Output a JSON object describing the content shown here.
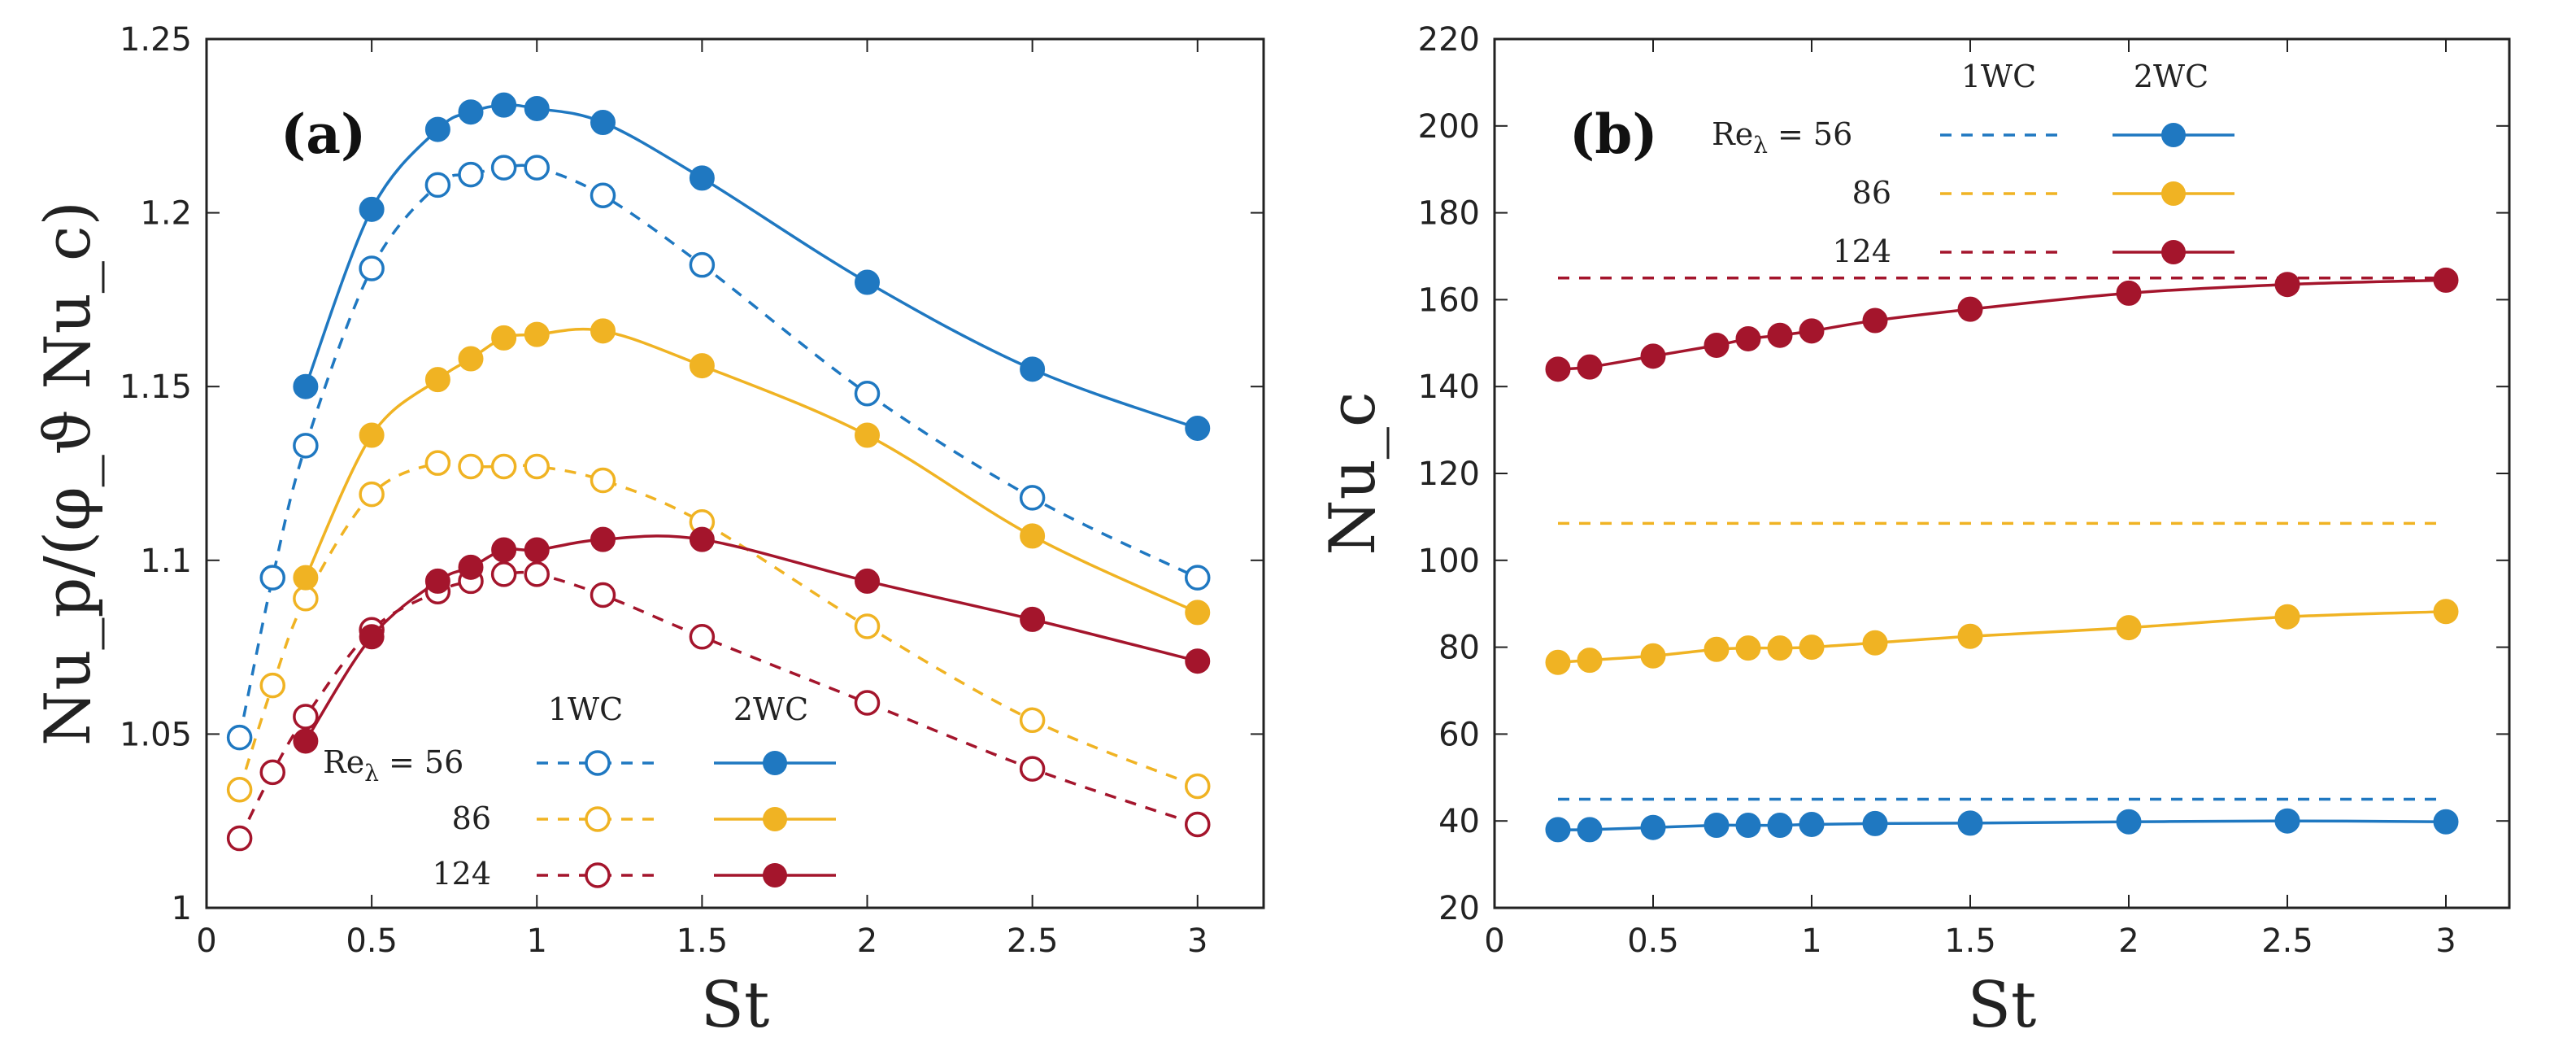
{
  "colors": {
    "56": "#1f78c1",
    "86": "#f0b323",
    "124": "#a4152c",
    "axis": "#222222"
  },
  "chart_data": [
    {
      "type": "line",
      "panel": "(a)",
      "xlabel": "St",
      "ylabel": "Nu_p/(φ_ϑ Nu_c)",
      "xlim": [
        0,
        3.2
      ],
      "ylim": [
        1.0,
        1.25
      ],
      "x_ticks": [
        "0",
        "0.5",
        "1",
        "1.5",
        "2",
        "2.5",
        "3"
      ],
      "y_ticks": [
        "1",
        "1.05",
        "1.1",
        "1.15",
        "1.2",
        "1.25"
      ],
      "legend": {
        "position": "bottom-center",
        "col_1wc": "1WC",
        "col_2wc": "2WC",
        "re_prefix": "Re",
        "re_subscript": "λ",
        "rows": [
          "= 56",
          "86",
          "124"
        ]
      },
      "series": [
        {
          "name": "1WC Re=56",
          "color_key": "56",
          "style": "dashed-open",
          "x": [
            0.1,
            0.2,
            0.3,
            0.5,
            0.7,
            0.8,
            0.9,
            1.0,
            1.2,
            1.5,
            2.0,
            2.5,
            3.0
          ],
          "y": [
            1.049,
            1.095,
            1.133,
            1.184,
            1.208,
            1.211,
            1.213,
            1.213,
            1.205,
            1.185,
            1.148,
            1.118,
            1.095
          ]
        },
        {
          "name": "2WC Re=56",
          "color_key": "56",
          "style": "solid-filled",
          "x": [
            0.3,
            0.5,
            0.7,
            0.8,
            0.9,
            1.0,
            1.2,
            1.5,
            2.0,
            2.5,
            3.0
          ],
          "y": [
            1.15,
            1.201,
            1.224,
            1.229,
            1.231,
            1.23,
            1.226,
            1.21,
            1.18,
            1.155,
            1.138
          ]
        },
        {
          "name": "1WC Re=86",
          "color_key": "86",
          "style": "dashed-open",
          "x": [
            0.1,
            0.2,
            0.3,
            0.5,
            0.7,
            0.8,
            0.9,
            1.0,
            1.2,
            1.5,
            2.0,
            2.5,
            3.0
          ],
          "y": [
            1.034,
            1.064,
            1.089,
            1.119,
            1.128,
            1.127,
            1.127,
            1.127,
            1.123,
            1.111,
            1.081,
            1.054,
            1.035
          ]
        },
        {
          "name": "2WC Re=86",
          "color_key": "86",
          "style": "solid-filled",
          "x": [
            0.3,
            0.5,
            0.7,
            0.8,
            0.9,
            1.0,
            1.2,
            1.5,
            2.0,
            2.5,
            3.0
          ],
          "y": [
            1.095,
            1.136,
            1.152,
            1.158,
            1.164,
            1.165,
            1.166,
            1.156,
            1.136,
            1.107,
            1.085
          ]
        },
        {
          "name": "1WC Re=124",
          "color_key": "124",
          "style": "dashed-open",
          "x": [
            0.1,
            0.2,
            0.3,
            0.5,
            0.7,
            0.8,
            0.9,
            1.0,
            1.2,
            1.5,
            2.0,
            2.5,
            3.0
          ],
          "y": [
            1.02,
            1.039,
            1.055,
            1.08,
            1.091,
            1.094,
            1.096,
            1.096,
            1.09,
            1.078,
            1.059,
            1.04,
            1.024
          ]
        },
        {
          "name": "2WC Re=124",
          "color_key": "124",
          "style": "solid-filled",
          "x": [
            0.3,
            0.5,
            0.7,
            0.8,
            0.9,
            1.0,
            1.2,
            1.5,
            2.0,
            2.5,
            3.0
          ],
          "y": [
            1.048,
            1.078,
            1.094,
            1.098,
            1.103,
            1.103,
            1.106,
            1.106,
            1.094,
            1.083,
            1.071
          ]
        }
      ]
    },
    {
      "type": "line",
      "panel": "(b)",
      "xlabel": "St",
      "ylabel": "Nu_c",
      "xlim": [
        0,
        3.2
      ],
      "ylim": [
        20,
        220
      ],
      "x_ticks": [
        "0",
        "0.5",
        "1",
        "1.5",
        "2",
        "2.5",
        "3"
      ],
      "y_ticks": [
        "20",
        "40",
        "60",
        "80",
        "100",
        "120",
        "140",
        "160",
        "180",
        "200",
        "220"
      ],
      "legend": {
        "position": "top-center",
        "col_1wc": "1WC",
        "col_2wc": "2WC",
        "re_prefix": "Re",
        "re_subscript": "λ",
        "rows": [
          "= 56",
          "86",
          "124"
        ]
      },
      "series": [
        {
          "name": "1WC Re=56",
          "color_key": "56",
          "style": "dashed-constant",
          "x": [
            0.2,
            3.0
          ],
          "y": [
            45,
            45
          ]
        },
        {
          "name": "1WC Re=86",
          "color_key": "86",
          "style": "dashed-constant",
          "x": [
            0.2,
            3.0
          ],
          "y": [
            108.5,
            108.5
          ]
        },
        {
          "name": "1WC Re=124",
          "color_key": "124",
          "style": "dashed-constant",
          "x": [
            0.2,
            3.0
          ],
          "y": [
            165,
            165
          ]
        },
        {
          "name": "2WC Re=56",
          "color_key": "56",
          "style": "solid-filled",
          "x": [
            0.2,
            0.3,
            0.5,
            0.7,
            0.8,
            0.9,
            1.0,
            1.2,
            1.5,
            2.0,
            2.5,
            3.0
          ],
          "y": [
            38,
            38,
            38.5,
            39,
            39,
            39,
            39.2,
            39.4,
            39.5,
            39.8,
            40,
            39.8
          ]
        },
        {
          "name": "2WC Re=86",
          "color_key": "86",
          "style": "solid-filled",
          "x": [
            0.2,
            0.3,
            0.5,
            0.7,
            0.8,
            0.9,
            1.0,
            1.2,
            1.5,
            2.0,
            2.5,
            3.0
          ],
          "y": [
            76.5,
            77,
            78,
            79.5,
            79.8,
            79.8,
            80,
            81,
            82.5,
            84.5,
            87,
            88.2
          ]
        },
        {
          "name": "2WC Re=124",
          "color_key": "124",
          "style": "solid-filled",
          "x": [
            0.2,
            0.3,
            0.5,
            0.7,
            0.8,
            0.9,
            1.0,
            1.2,
            1.5,
            2.0,
            2.5,
            3.0
          ],
          "y": [
            144,
            144.5,
            147,
            149.5,
            151,
            151.8,
            152.8,
            155.2,
            157.8,
            161.5,
            163.5,
            164.5
          ]
        }
      ]
    }
  ]
}
